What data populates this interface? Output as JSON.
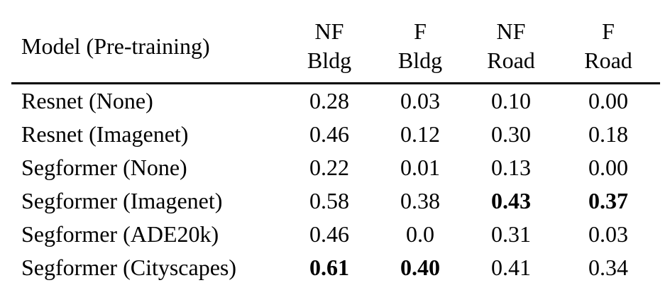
{
  "table": {
    "header": {
      "model": "Model (Pre-training)",
      "cols": [
        {
          "l1": "NF",
          "l2": "Bldg"
        },
        {
          "l1": "F",
          "l2": "Bldg"
        },
        {
          "l1": "NF",
          "l2": "Road"
        },
        {
          "l1": "F",
          "l2": "Road"
        }
      ]
    },
    "rows": [
      {
        "model": "Resnet (None)",
        "v": [
          "0.28",
          "0.03",
          "0.10",
          "0.00"
        ],
        "b": [
          false,
          false,
          false,
          false
        ]
      },
      {
        "model": "Resnet (Imagenet)",
        "v": [
          "0.46",
          "0.12",
          "0.30",
          "0.18"
        ],
        "b": [
          false,
          false,
          false,
          false
        ]
      },
      {
        "model": "Segformer (None)",
        "v": [
          "0.22",
          "0.01",
          "0.13",
          "0.00"
        ],
        "b": [
          false,
          false,
          false,
          false
        ]
      },
      {
        "model": "Segformer (Imagenet)",
        "v": [
          "0.58",
          "0.38",
          "0.43",
          "0.37"
        ],
        "b": [
          false,
          false,
          true,
          true
        ]
      },
      {
        "model": "Segformer (ADE20k)",
        "v": [
          "0.46",
          "0.0",
          "0.31",
          "0.03"
        ],
        "b": [
          false,
          false,
          false,
          false
        ]
      },
      {
        "model": "Segformer (Cityscapes)",
        "v": [
          "0.61",
          "0.40",
          "0.41",
          "0.34"
        ],
        "b": [
          true,
          true,
          false,
          false
        ]
      }
    ]
  },
  "chart_data": {
    "type": "table",
    "columns": [
      "Model (Pre-training)",
      "NF Bldg",
      "F Bldg",
      "NF Road",
      "F Road"
    ],
    "rows": [
      [
        "Resnet (None)",
        0.28,
        0.03,
        0.1,
        0.0
      ],
      [
        "Resnet (Imagenet)",
        0.46,
        0.12,
        0.3,
        0.18
      ],
      [
        "Segformer (None)",
        0.22,
        0.01,
        0.13,
        0.0
      ],
      [
        "Segformer (Imagenet)",
        0.58,
        0.38,
        0.43,
        0.37
      ],
      [
        "Segformer (ADE20k)",
        0.46,
        0.0,
        0.31,
        0.03
      ],
      [
        "Segformer (Cityscapes)",
        0.61,
        0.4,
        0.41,
        0.34
      ]
    ],
    "bold_cells": [
      [
        3,
        3
      ],
      [
        3,
        4
      ],
      [
        5,
        1
      ],
      [
        5,
        2
      ]
    ]
  }
}
